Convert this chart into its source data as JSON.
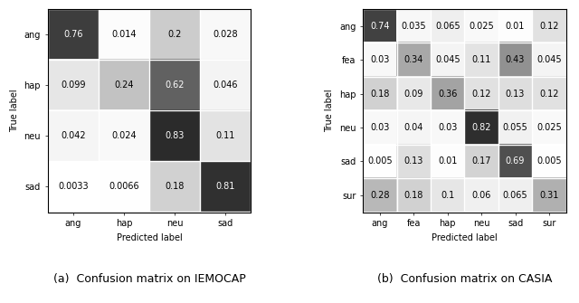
{
  "iemocap": {
    "matrix": [
      [
        0.76,
        0.014,
        0.2,
        0.028
      ],
      [
        0.099,
        0.24,
        0.62,
        0.046
      ],
      [
        0.042,
        0.024,
        0.83,
        0.11
      ],
      [
        0.0033,
        0.0066,
        0.18,
        0.81
      ]
    ],
    "labels": [
      "ang",
      "hap",
      "neu",
      "sad"
    ],
    "xlabel": "Predicted label",
    "ylabel": "True label",
    "caption": "(a)  Confusion matrix on IEMOCAP"
  },
  "casia": {
    "matrix": [
      [
        0.74,
        0.035,
        0.065,
        0.025,
        0.01,
        0.12
      ],
      [
        0.03,
        0.34,
        0.045,
        0.11,
        0.43,
        0.045
      ],
      [
        0.18,
        0.09,
        0.36,
        0.12,
        0.13,
        0.12
      ],
      [
        0.03,
        0.04,
        0.03,
        0.82,
        0.055,
        0.025
      ],
      [
        0.005,
        0.13,
        0.01,
        0.17,
        0.69,
        0.005
      ],
      [
        0.28,
        0.18,
        0.1,
        0.06,
        0.065,
        0.31
      ]
    ],
    "labels": [
      "ang",
      "fea",
      "hap",
      "neu",
      "sad",
      "sur"
    ],
    "xlabel": "Predicted label",
    "ylabel": "True label",
    "caption": "(b)  Confusion matrix on CASIA"
  },
  "text_color_light": "#ffffff",
  "text_color_dark": "#000000",
  "threshold": 0.5,
  "font_size_values": 7,
  "font_size_ticks": 7,
  "font_size_axis_label": 7,
  "font_size_caption": 9,
  "cmap": "gray_r",
  "vmin": 0,
  "vmax": 1
}
